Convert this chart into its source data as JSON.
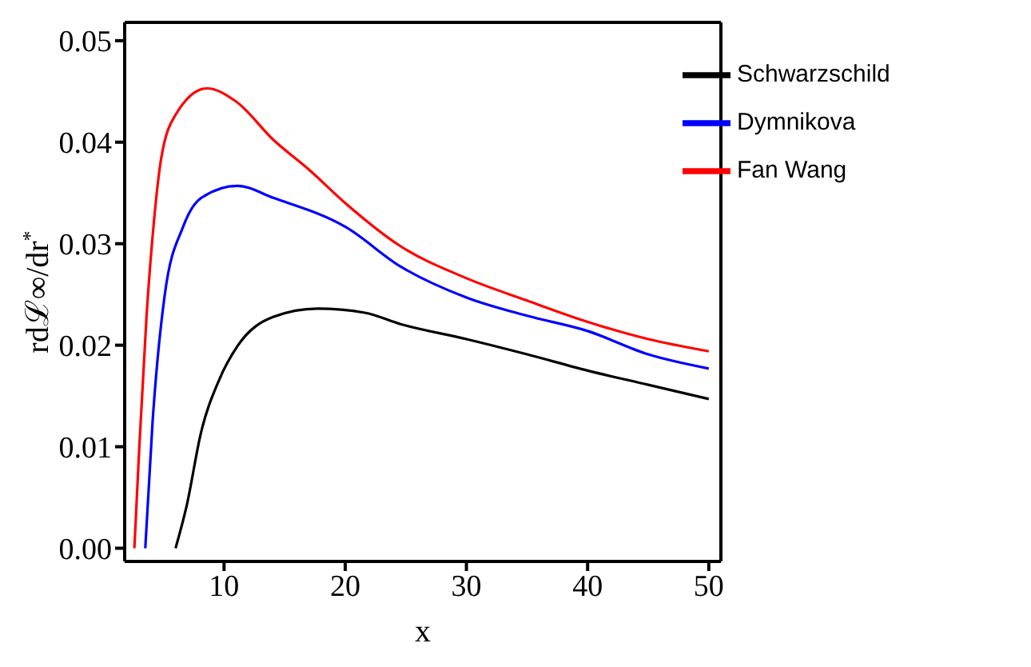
{
  "chart_data": {
    "type": "line",
    "xlabel": "x",
    "ylabel": "rdℒ∞/dr$^{*}$",
    "xlim": [
      1.8,
      51
    ],
    "ylim": [
      -0.0013,
      0.0518
    ],
    "xticks": [
      10,
      20,
      30,
      40,
      50
    ],
    "yticks": [
      {
        "value": 0,
        "label": "0.00"
      },
      {
        "value": 0.01,
        "label": "0.01"
      },
      {
        "value": 0.02,
        "label": "0.02"
      },
      {
        "value": 0.03,
        "label": "0.03"
      },
      {
        "value": 0.04,
        "label": "0.04"
      },
      {
        "value": 0.05,
        "label": "0.05"
      }
    ],
    "grid": false,
    "legend": "top right",
    "marker": "none",
    "line_style": "solid",
    "series": [
      {
        "name": "Schwarzschild",
        "color": "#000000",
        "x": [
          6.0,
          6.9,
          8.1,
          9.6,
          11.1,
          14.1,
          17.7,
          21.6,
          24.5,
          30,
          35,
          40,
          45,
          50
        ],
        "values": [
          0,
          0.0041,
          0.0114,
          0.0166,
          0.0199,
          0.0228,
          0.0236,
          0.0232,
          0.0221,
          0.0206,
          0.0191,
          0.0175,
          0.0161,
          0.0147
        ]
      },
      {
        "name": "Dymnikova",
        "color": "#0000ff",
        "x": [
          3.5,
          4.1,
          5.1,
          6.6,
          8.1,
          11.1,
          14.1,
          20.1,
          24.5,
          30,
          35,
          40,
          45,
          50
        ],
        "values": [
          0,
          0.0124,
          0.0249,
          0.0316,
          0.0345,
          0.0357,
          0.0345,
          0.0316,
          0.0278,
          0.0247,
          0.0229,
          0.0214,
          0.0191,
          0.0177
        ]
      },
      {
        "name": "Fan Wang",
        "color": "#ff0000",
        "x": [
          2.6,
          3.0,
          3.6,
          4.2,
          4.8,
          6.0,
          8.6,
          11.0,
          14.1,
          17.0,
          20.1,
          24.5,
          30,
          35,
          40,
          45,
          50
        ],
        "values": [
          0,
          0.0098,
          0.0228,
          0.032,
          0.0383,
          0.0427,
          0.0453,
          0.044,
          0.0402,
          0.0373,
          0.0339,
          0.0298,
          0.0266,
          0.0244,
          0.0223,
          0.0206,
          0.0194
        ]
      }
    ]
  }
}
